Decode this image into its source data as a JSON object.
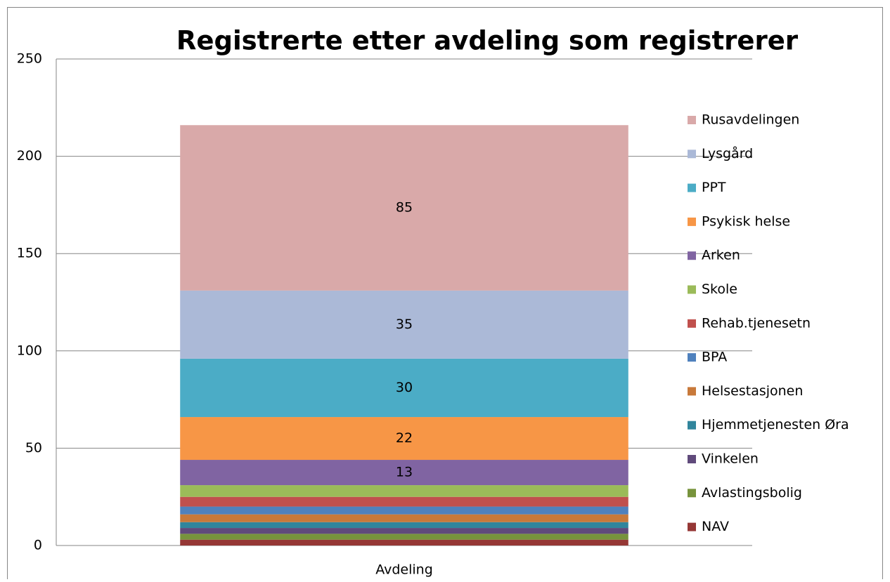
{
  "chart_data": {
    "type": "stacked_bar",
    "title": "Registrerte etter avdeling som registrerer",
    "categories": [
      "Avdeling"
    ],
    "ylim": [
      0,
      250
    ],
    "yticks": [
      0,
      50,
      100,
      150,
      200,
      250
    ],
    "grid": true,
    "legend": "right",
    "series": [
      {
        "name": "NAV",
        "color": "#953735",
        "values": [
          3
        ]
      },
      {
        "name": "Avlastingsbolig",
        "color": "#77933c",
        "values": [
          3
        ]
      },
      {
        "name": "Vinkelen",
        "color": "#604a7b",
        "values": [
          3
        ]
      },
      {
        "name": "Hjemmetjenesten Øra",
        "color": "#31859c",
        "values": [
          3
        ]
      },
      {
        "name": "Helsestasjonen",
        "color": "#c8793a",
        "values": [
          4
        ]
      },
      {
        "name": "BPA",
        "color": "#4f81bd",
        "values": [
          4
        ]
      },
      {
        "name": "Rehab.tjenesetn",
        "color": "#c0504d",
        "values": [
          5
        ]
      },
      {
        "name": "Skole",
        "color": "#9bbb59",
        "values": [
          6
        ]
      },
      {
        "name": "Arken",
        "color": "#8064a2",
        "values": [
          13
        ],
        "data_labels": true
      },
      {
        "name": "Psykisk helse",
        "color": "#f79646",
        "values": [
          22
        ],
        "data_labels": true
      },
      {
        "name": "PPT",
        "color": "#4bacc6",
        "values": [
          30
        ],
        "data_labels": true
      },
      {
        "name": "Lysgård",
        "color": "#abb9d7",
        "values": [
          35
        ],
        "data_labels": true
      },
      {
        "name": "Rusavdelingen",
        "color": "#d9a9a9",
        "values": [
          85
        ],
        "data_labels": true
      }
    ]
  }
}
